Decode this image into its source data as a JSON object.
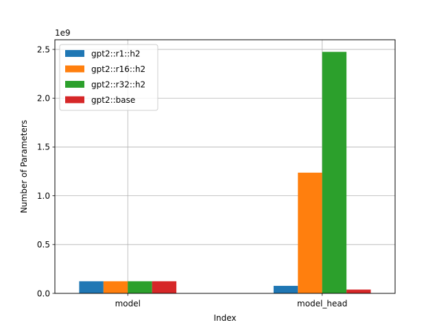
{
  "chart_data": {
    "type": "bar",
    "categories": [
      "model",
      "model_head"
    ],
    "series": [
      {
        "name": "gpt2::r1::h2",
        "color": "#1f77b4",
        "values": [
          124000000,
          77000000
        ]
      },
      {
        "name": "gpt2::r16::h2",
        "color": "#ff7f0e",
        "values": [
          124000000,
          1237000000
        ]
      },
      {
        "name": "gpt2::r32::h2",
        "color": "#2ca02c",
        "values": [
          124000000,
          2475000000
        ]
      },
      {
        "name": "gpt2::base",
        "color": "#d62728",
        "values": [
          124000000,
          38600000
        ]
      }
    ],
    "xlabel": "Index",
    "ylabel": "Number of Parameters",
    "y_offset_text": "1e9",
    "y_scale": 1000000000,
    "y_ticks": [
      0.0,
      0.5,
      1.0,
      1.5,
      2.0,
      2.5
    ],
    "y_tick_labels": [
      "0.0",
      "0.5",
      "1.0",
      "1.5",
      "2.0",
      "2.5"
    ],
    "ylim": [
      0,
      2598750000
    ],
    "grid": true,
    "legend_position": "upper-left"
  }
}
